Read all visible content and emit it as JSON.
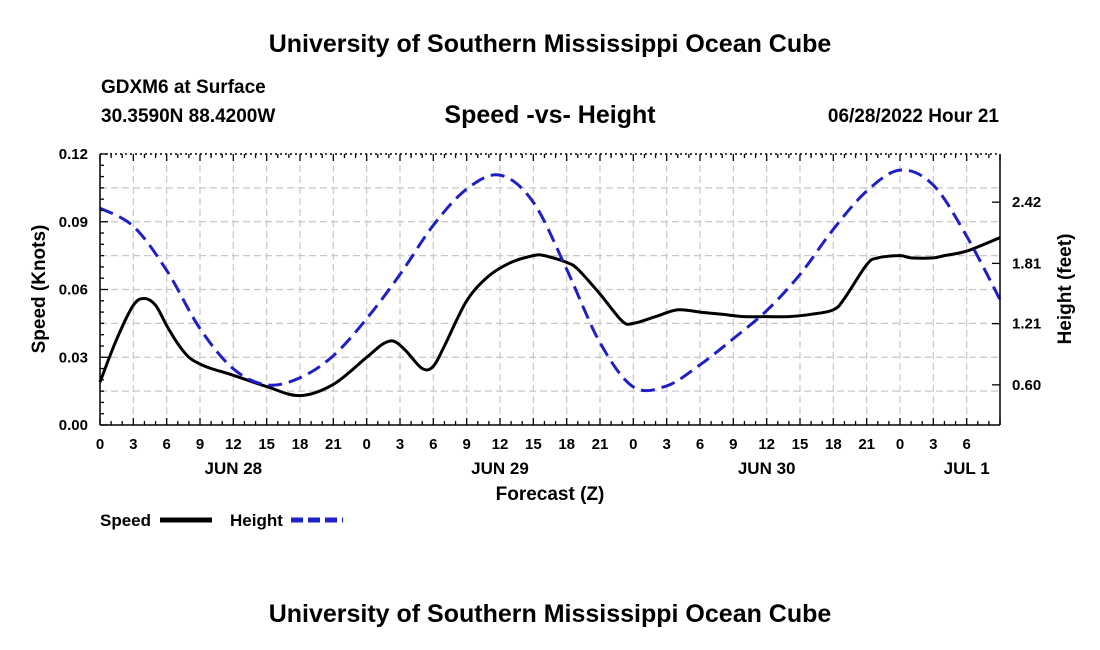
{
  "header": {
    "title": "University of Southern Mississippi Ocean Cube",
    "station": "GDXM6 at Surface",
    "coords": "30.3590N  88.4200W",
    "subtitle": "Speed -vs- Height",
    "datetime": "06/28/2022 Hour 21"
  },
  "footer": {
    "title": "University of Southern Mississippi Ocean Cube"
  },
  "chart_data": {
    "type": "line",
    "title": "Speed -vs- Height",
    "xlabel": "Forecast (Z)",
    "ylabel": "Speed (Knots)",
    "y2label": "Height (feet)",
    "x_range_hours": [
      0,
      81
    ],
    "x_ticks": [
      "0",
      "3",
      "6",
      "9",
      "12",
      "15",
      "18",
      "21",
      "0",
      "3",
      "6",
      "9",
      "12",
      "15",
      "18",
      "21",
      "0",
      "3",
      "6",
      "9",
      "12",
      "15",
      "18",
      "21",
      "0",
      "3",
      "6"
    ],
    "date_labels": [
      {
        "label": "JUN 28",
        "hour": 12
      },
      {
        "label": "JUN 29",
        "hour": 36
      },
      {
        "label": "JUN 30",
        "hour": 60
      },
      {
        "label": "JUL 1",
        "hour": 78
      }
    ],
    "ylim": [
      0,
      0.12
    ],
    "y_ticks": [
      "0.00",
      "0.03",
      "0.06",
      "0.09",
      "0.12"
    ],
    "y2lim": [
      0.2,
      2.9
    ],
    "y2_ticks": [
      "0.60",
      "1.21",
      "1.81",
      "2.42"
    ],
    "colors": {
      "speed": "#000000",
      "height": "#1f1fc8",
      "grid": "#c8c8c8"
    },
    "series": [
      {
        "name": "Speed",
        "axis": "left",
        "x": [
          0,
          1.5,
          3,
          4,
          5,
          6,
          7,
          8,
          9,
          10,
          12,
          15,
          18,
          21,
          24,
          25.5,
          26.5,
          27.5,
          29,
          30,
          31,
          33,
          35,
          37,
          39,
          40,
          42,
          43,
          45,
          47,
          48,
          50,
          52,
          54,
          56,
          58,
          60,
          62,
          64,
          66,
          67,
          69,
          70,
          72,
          73,
          75,
          76,
          78,
          81
        ],
        "values": [
          0.019,
          0.038,
          0.053,
          0.056,
          0.053,
          0.044,
          0.036,
          0.03,
          0.027,
          0.025,
          0.022,
          0.017,
          0.013,
          0.018,
          0.03,
          0.036,
          0.037,
          0.033,
          0.025,
          0.026,
          0.035,
          0.055,
          0.066,
          0.072,
          0.075,
          0.075,
          0.072,
          0.069,
          0.058,
          0.046,
          0.045,
          0.048,
          0.051,
          0.05,
          0.049,
          0.048,
          0.048,
          0.048,
          0.049,
          0.051,
          0.056,
          0.071,
          0.074,
          0.075,
          0.074,
          0.074,
          0.075,
          0.077,
          0.083
        ]
      },
      {
        "name": "Height",
        "axis": "right",
        "x": [
          0,
          3,
          6,
          9,
          12,
          15,
          18,
          21,
          24,
          27,
          30,
          33,
          36,
          39,
          42,
          45,
          48,
          51,
          54,
          57,
          60,
          63,
          66,
          69,
          72,
          75,
          78,
          81
        ],
        "values": [
          2.36,
          2.18,
          1.74,
          1.16,
          0.76,
          0.6,
          0.67,
          0.89,
          1.26,
          1.7,
          2.19,
          2.55,
          2.69,
          2.42,
          1.75,
          1.02,
          0.58,
          0.59,
          0.8,
          1.06,
          1.34,
          1.7,
          2.15,
          2.53,
          2.74,
          2.59,
          2.08,
          1.45
        ]
      }
    ],
    "legend": [
      {
        "name": "Speed",
        "label": "Speed"
      },
      {
        "name": "Height",
        "label": "Height"
      }
    ]
  }
}
